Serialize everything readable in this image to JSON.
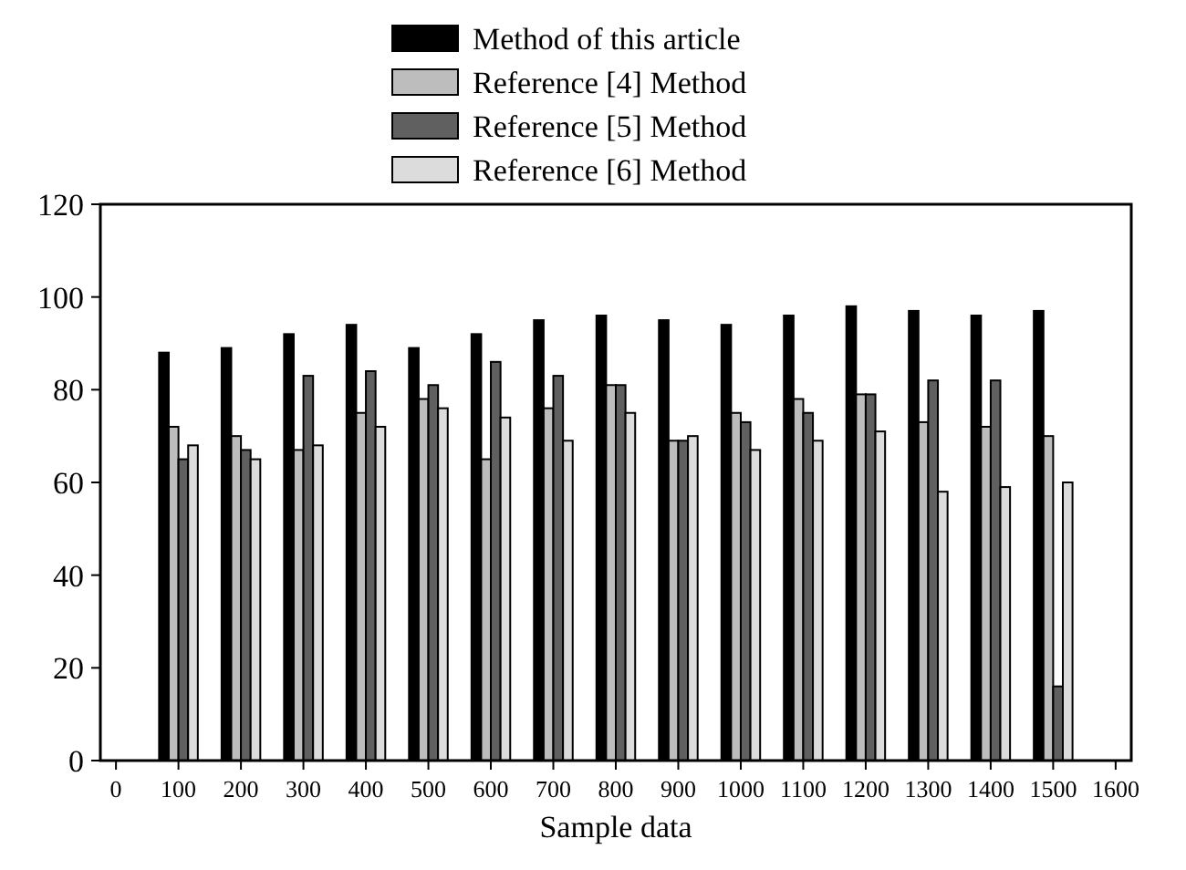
{
  "chart_data": {
    "type": "bar",
    "xlabel": "Sample data",
    "x": [
      100,
      200,
      300,
      400,
      500,
      600,
      700,
      800,
      900,
      1000,
      1100,
      1200,
      1300,
      1400,
      1500
    ],
    "series": [
      {
        "name": "Method of this article",
        "color": "#000000",
        "values": [
          88,
          89,
          92,
          94,
          89,
          92,
          95,
          96,
          95,
          94,
          96,
          98,
          97,
          96,
          97
        ]
      },
      {
        "name": "Reference [4] Method",
        "color": "#bdbdbd",
        "values": [
          72,
          70,
          67,
          75,
          78,
          65,
          76,
          81,
          69,
          75,
          78,
          79,
          73,
          72,
          70
        ]
      },
      {
        "name": "Reference [5] Method",
        "color": "#606060",
        "values": [
          65,
          67,
          83,
          84,
          81,
          86,
          83,
          81,
          69,
          73,
          75,
          79,
          82,
          82,
          16
        ]
      },
      {
        "name": "Reference [6] Method",
        "color": "#dcdcdc",
        "values": [
          68,
          65,
          68,
          72,
          76,
          74,
          69,
          75,
          70,
          67,
          69,
          71,
          58,
          59,
          60
        ]
      }
    ],
    "xlim": [
      -25,
      1625
    ],
    "xticks": [
      0,
      100,
      200,
      300,
      400,
      500,
      600,
      700,
      800,
      900,
      1000,
      1100,
      1200,
      1300,
      1400,
      1500,
      1600
    ],
    "ylim": [
      0,
      120
    ],
    "yticks": [
      0,
      20,
      40,
      60,
      80,
      100,
      120
    ],
    "grid": false,
    "legend": "top"
  }
}
